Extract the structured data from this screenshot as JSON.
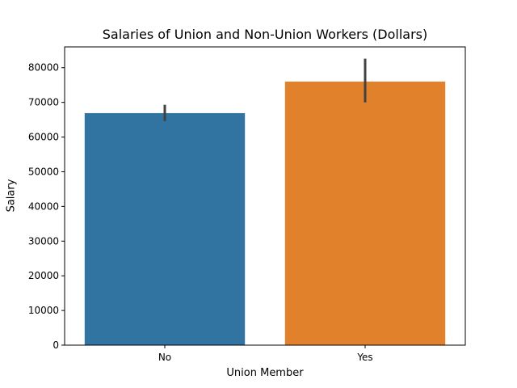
{
  "chart_data": {
    "type": "bar",
    "title": "Salaries of Union and Non-Union Workers (Dollars)",
    "xlabel": "Union Member",
    "ylabel": "Salary",
    "categories": [
      "No",
      "Yes"
    ],
    "values": [
      66900,
      76000
    ],
    "error_bars": [
      {
        "low": 64600,
        "high": 69300
      },
      {
        "low": 70000,
        "high": 82600
      }
    ],
    "colors": [
      "#3274a1",
      "#e1812c"
    ],
    "error_color": "#424242",
    "ylim": [
      0,
      86000
    ],
    "yticks": [
      0,
      10000,
      20000,
      30000,
      40000,
      50000,
      60000,
      70000,
      80000
    ],
    "grid": false,
    "legend": "none"
  }
}
